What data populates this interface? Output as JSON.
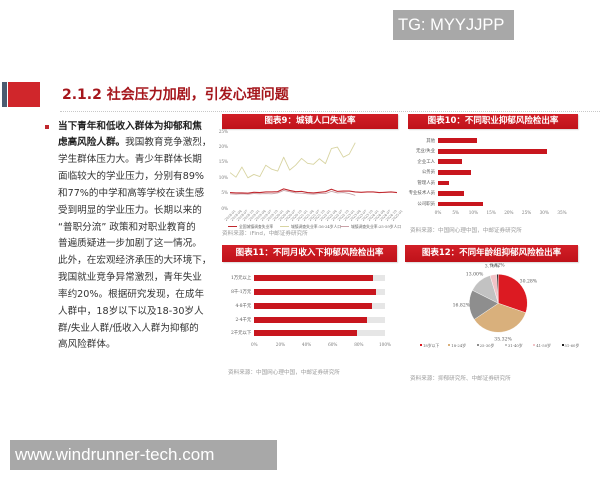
{
  "watermarks": {
    "top_right": "TG: MYYJJPP",
    "bottom_left": "www.windrunner-tech.com"
  },
  "section": {
    "title": "2.1.2 社会压力加剧，引发心理问题"
  },
  "body_text": {
    "lines": [
      {
        "bold": "当下青年和低收入群体为抑郁和焦",
        "text": ""
      },
      {
        "bold": "虑高风险人群。",
        "text": "我国教育竞争激烈，"
      },
      {
        "bold": "",
        "text": "学生群体压力大。青少年群体长期"
      },
      {
        "bold": "",
        "text": "面临较大的学业压力，分别有89%"
      },
      {
        "bold": "",
        "text": "和77%的中学和高等学校在读生感"
      },
      {
        "bold": "",
        "text": "受到明显的学业压力。长期以来的"
      },
      {
        "bold": "",
        "text": "“普职分流” 政策和对职业教育的"
      },
      {
        "bold": "",
        "text": "普遍质疑进一步加剧了这一情况。"
      },
      {
        "bold": "",
        "text": "此外，在宏观经济承压的大环境下，"
      },
      {
        "bold": "",
        "text": "我国就业竞争异常激烈，青年失业"
      },
      {
        "bold": "",
        "text": "率约20%。根据研究发现，在成年"
      },
      {
        "bold": "",
        "text": "人群中，18岁以下以及18-30岁人"
      },
      {
        "bold": "",
        "text": "群/失业人群/低收入人群为抑郁的"
      },
      {
        "bold": "",
        "text": "高风险群体。"
      }
    ]
  },
  "colors": {
    "accent_red": "#c8161e",
    "title_dark_red": "#a5161c",
    "header_slate": "#4b5b70",
    "text": "#333333",
    "source_gray": "#9a9a9a",
    "track_gray": "#e6e6e6",
    "watermark_bg": "#a8a8a8"
  },
  "chart_data": [
    {
      "type": "line",
      "title": "图表9：城镇人口失业率",
      "x": [
        "2018-01",
        "2018-04",
        "2018-07",
        "2018-10",
        "2019-01",
        "2019-04",
        "2019-07",
        "2019-10",
        "2020-01",
        "2020-04",
        "2020-07",
        "2020-10",
        "2021-01",
        "2021-04",
        "2021-07",
        "2021-10",
        "2022-01",
        "2022-04",
        "2022-07",
        "2022-10",
        "2023-01",
        "2023-04",
        "2023-07",
        "2023-10",
        "2024-01",
        "2024-04",
        "2024-07",
        "2024-10",
        "2025-01"
      ],
      "yticks": [
        "0%",
        "5%",
        "10%",
        "15%",
        "20%",
        "25%"
      ],
      "ylim": [
        0,
        25
      ],
      "grid": false,
      "legend_position": "bottom",
      "series": [
        {
          "name": "全国城镇调查失业率",
          "color": "#c0282e",
          "values": [
            5.0,
            4.9,
            4.9,
            4.8,
            5.1,
            5.0,
            5.2,
            5.2,
            5.3,
            6.2,
            5.7,
            5.3,
            5.4,
            5.0,
            4.9,
            5.1,
            5.3,
            6.1,
            5.4,
            5.5,
            5.5,
            5.2,
            5.1,
            5.2,
            5.2,
            5.0,
            5.1,
            5.2,
            5.0
          ]
        },
        {
          "name": "城镇调查失业率:16-24岁人口",
          "color": "#d8d4a2",
          "values": [
            11.5,
            10.0,
            13.3,
            9.8,
            10.9,
            10.2,
            13.9,
            12.6,
            12.0,
            16.5,
            12.3,
            13.9,
            16.1,
            14.5,
            14.2,
            16.0,
            14.4,
            19.3,
            19.8,
            16.5,
            17.5,
            21.2
          ]
        },
        {
          "name": "城镇调查失业率:25-59岁人口",
          "color": "#c9a1a7",
          "values": [
            4.6,
            4.5,
            4.6,
            4.5,
            4.7,
            4.6,
            4.7,
            4.6,
            4.9,
            5.7,
            5.3,
            4.9,
            4.8,
            4.6,
            4.5,
            4.7,
            4.7,
            5.4,
            4.9,
            5.0,
            4.7,
            4.1
          ]
        }
      ],
      "source": "资料来源：iFind，中邮证券研究所"
    },
    {
      "type": "bar",
      "orientation": "horizontal",
      "title": "图表10：不同职业抑郁风险检出率",
      "categories": [
        "其他",
        "无业/失业",
        "企业工人",
        "公务员",
        "管理人员",
        "专业技术人员",
        "公司职员"
      ],
      "values": [
        11.1,
        30.9,
        6.8,
        9.2,
        3.1,
        7.4,
        12.7
      ],
      "xticks": [
        "0%",
        "5%",
        "10%",
        "15%",
        "20%",
        "25%",
        "30%",
        "35%"
      ],
      "xlim": [
        0,
        35
      ],
      "grid": false,
      "color": "#c8161e",
      "source": "资料来源：中国网心理中国，中邮证券研究所"
    },
    {
      "type": "bar",
      "orientation": "horizontal",
      "title": "图表11：不同月收入下抑郁风险检出率",
      "categories": [
        "1万元以上",
        "8千-1万元",
        "4-8千元",
        "2-4千元",
        "2千元以下"
      ],
      "values": [
        91.0,
        92.8,
        89.8,
        86.5,
        78.8
      ],
      "xticks": [
        "0%",
        "20%",
        "40%",
        "60%",
        "80%",
        "100%"
      ],
      "xlim": [
        0,
        100
      ],
      "grid": false,
      "color": "#c8161e",
      "track_color": "#e6e6e6",
      "source": "资料来源：中国网心理中国，中邮证券研究所"
    },
    {
      "type": "pie",
      "title": "图表12：不同年龄组抑郁风险检出率",
      "categories": [
        "18岁以下",
        "18-24岁",
        "25-30岁",
        "31-40岁",
        "41-50岁",
        "51-60岁"
      ],
      "values": [
        30.28,
        35.32,
        16.82,
        13.0,
        3.76,
        0.82
      ],
      "labels": [
        "30.28%",
        "35.32%",
        "16.82%",
        "13.00%",
        "3.76%",
        "0.82%"
      ],
      "colors": [
        "#dc1a22",
        "#d9b07c",
        "#8e8e8e",
        "#c2c2c2",
        "#f1c3c7",
        "#1f1f1f"
      ],
      "legend_position": "bottom",
      "source": "资料来源：抑郁研究所、中邮证券研究所"
    }
  ]
}
